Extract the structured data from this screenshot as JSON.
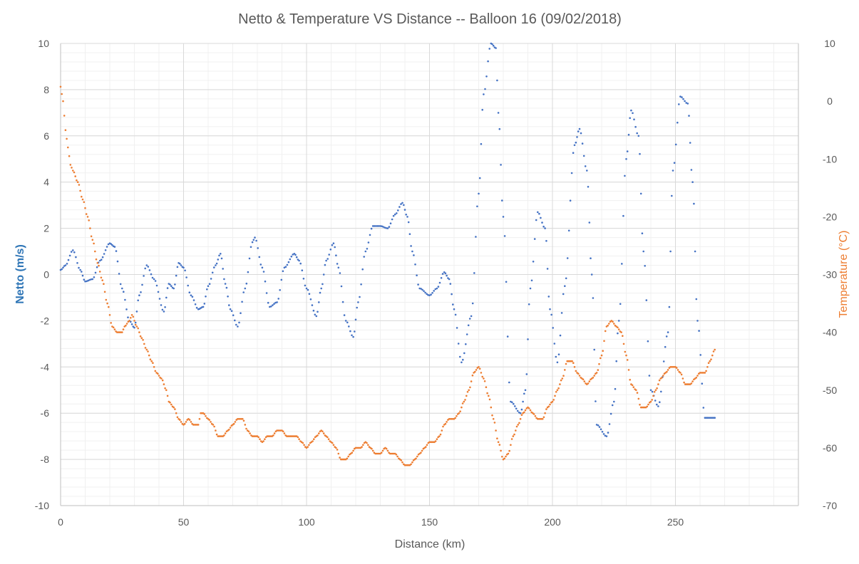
{
  "chart_data": {
    "type": "scatter",
    "title": "Netto & Temperature VS Distance -- Balloon 16 (09/02/2018)",
    "xlabel": "Distance (km)",
    "ylabel": "Netto (m/s)",
    "y2label": "Temperature (°C)",
    "xlim": [
      0,
      300
    ],
    "ylim": [
      -10,
      10
    ],
    "y2lim": [
      -70,
      10
    ],
    "xticks": [
      0,
      50,
      100,
      150,
      200,
      250
    ],
    "yticks": [
      -10,
      -8,
      -6,
      -4,
      -2,
      0,
      2,
      4,
      6,
      8,
      10
    ],
    "y2ticks": [
      -70,
      -60,
      -50,
      -40,
      -30,
      -20,
      -10,
      0,
      10
    ],
    "grid": true,
    "colors": {
      "netto": "#4472C4",
      "temperature": "#ED7D31",
      "netto_axis": "#2E75B6",
      "temperature_axis": "#ED7D31"
    },
    "series": [
      {
        "axis": "left",
        "color": "#4472C4",
        "x": [
          0,
          2,
          5,
          8,
          10,
          13,
          16,
          20,
          22,
          25,
          28,
          30,
          32,
          35,
          38,
          42,
          44,
          46,
          48,
          50,
          53,
          56,
          58,
          60,
          63,
          65,
          67,
          69,
          72,
          75,
          78,
          79,
          82,
          85,
          88,
          91,
          95,
          97,
          100,
          104,
          106,
          108,
          111,
          113,
          116,
          119,
          121,
          124,
          127,
          130,
          133,
          136,
          139,
          141,
          143,
          146,
          150,
          153,
          156,
          158,
          160,
          163,
          167,
          170,
          172,
          175,
          177,
          178,
          180,
          183,
          187,
          189,
          191,
          194,
          197,
          199,
          202,
          205,
          209,
          211,
          214,
          216,
          218,
          222,
          225,
          227,
          230,
          232,
          235,
          237,
          240,
          243,
          247,
          249,
          252,
          255,
          257,
          259,
          262,
          266
        ],
        "y": [
          0.2,
          0.4,
          1.05,
          0.2,
          -0.3,
          -0.2,
          0.6,
          1.35,
          1.2,
          -0.6,
          -2.0,
          -2.3,
          -0.9,
          0.4,
          -0.2,
          -1.6,
          -0.4,
          -0.6,
          0.5,
          0.3,
          -0.9,
          -1.5,
          -1.4,
          -0.5,
          0.4,
          0.9,
          -0.4,
          -1.5,
          -2.25,
          -0.6,
          1.4,
          1.6,
          0.3,
          -1.4,
          -1.2,
          0.3,
          0.9,
          0.6,
          -0.6,
          -1.8,
          -0.6,
          0.6,
          1.35,
          0.3,
          -2.0,
          -2.7,
          -1.2,
          1.0,
          2.1,
          2.1,
          2.0,
          2.6,
          3.1,
          2.5,
          1.0,
          -0.6,
          -0.9,
          -0.6,
          0.1,
          -0.2,
          -1.5,
          -3.8,
          -1.8,
          3.5,
          7.8,
          10.0,
          9.8,
          7.0,
          2.5,
          -5.5,
          -6.0,
          -5.0,
          -0.6,
          2.7,
          2.0,
          -1.5,
          -3.8,
          -0.5,
          5.6,
          6.3,
          4.5,
          0.0,
          -6.5,
          -7.0,
          -5.5,
          -2.0,
          5.0,
          7.1,
          6.0,
          1.0,
          -5.0,
          -5.7,
          -2.5,
          4.5,
          7.7,
          7.4,
          4.0,
          -2.0,
          -6.2,
          -6.2
        ]
      },
      {
        "axis": "right",
        "color": "#ED7D31",
        "x": [
          0,
          1,
          2,
          3,
          4,
          5,
          7,
          9,
          11,
          13,
          15,
          17,
          19,
          21,
          23,
          25,
          26,
          28,
          29,
          31,
          33,
          35,
          37,
          39,
          41,
          43,
          44,
          46,
          48,
          50,
          52,
          54,
          56,
          57,
          58,
          60,
          62,
          64,
          66,
          68,
          70,
          72,
          74,
          76,
          78,
          80,
          82,
          84,
          86,
          88,
          90,
          92,
          94,
          96,
          98,
          100,
          102,
          104,
          106,
          108,
          110,
          112,
          114,
          116,
          118,
          120,
          122,
          124,
          126,
          128,
          130,
          132,
          134,
          136,
          138,
          140,
          142,
          144,
          146,
          148,
          150,
          152,
          154,
          156,
          158,
          160,
          162,
          164,
          166,
          168,
          170,
          172,
          174,
          176,
          178,
          180,
          182,
          184,
          186,
          188,
          190,
          192,
          194,
          196,
          198,
          200,
          202,
          204,
          206,
          208,
          210,
          212,
          214,
          216,
          218,
          220,
          222,
          224,
          226,
          228,
          230,
          232,
          234,
          236,
          238,
          240,
          242,
          244,
          246,
          248,
          250,
          252,
          254,
          256,
          258,
          260,
          262,
          264,
          266
        ],
        "y": [
          2.5,
          0,
          -5,
          -8,
          -11,
          -12,
          -14,
          -17,
          -20,
          -24,
          -28,
          -31,
          -35,
          -39,
          -40,
          -40,
          -39,
          -38,
          -37,
          -39,
          -41,
          -43,
          -45,
          -47,
          -48,
          -50,
          -52,
          -53,
          -55,
          -56,
          -55,
          -56,
          -56,
          -54,
          -54,
          -55,
          -56,
          -58,
          -58,
          -57,
          -56,
          -55,
          -55,
          -57,
          -58,
          -58,
          -59,
          -58,
          -58,
          -57,
          -57,
          -58,
          -58,
          -58,
          -59,
          -60,
          -59,
          -58,
          -57,
          -58,
          -59,
          -60,
          -62,
          -62,
          -61,
          -60,
          -60,
          -59,
          -60,
          -61,
          -61,
          -60,
          -61,
          -61,
          -62,
          -63,
          -63,
          -62,
          -61,
          -60,
          -59,
          -59,
          -58,
          -56,
          -55,
          -55,
          -54,
          -52,
          -50,
          -47,
          -46,
          -48,
          -51,
          -55,
          -59,
          -62,
          -61,
          -58,
          -56,
          -54,
          -53,
          -54,
          -55,
          -55,
          -53,
          -52,
          -50,
          -48,
          -45,
          -45,
          -47,
          -48,
          -49,
          -48,
          -47,
          -44,
          -39,
          -38,
          -39,
          -40,
          -44,
          -49,
          -50,
          -53,
          -53,
          -52,
          -50,
          -48,
          -47,
          -46,
          -46,
          -47,
          -49,
          -49,
          -48,
          -47,
          -47,
          -45,
          -43
        ]
      }
    ]
  }
}
